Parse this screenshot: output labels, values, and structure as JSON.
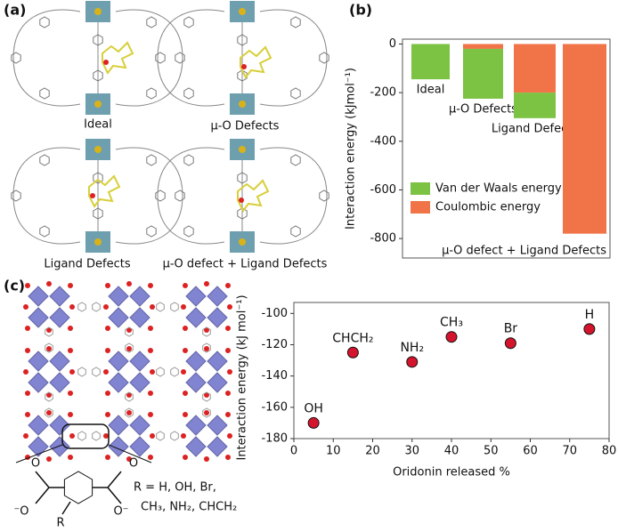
{
  "panel_labels": [
    "(a)",
    "(b)",
    "(c)"
  ],
  "panel_a": {
    "captions": [
      "Ideal",
      "μ-O Defects",
      "Ligand Defects",
      "μ-O defect + Ligand Defects"
    ]
  },
  "panel_c": {
    "r_groups": [
      "R = H, OH, Br,",
      "CH₃, NH₂, CHCH₂"
    ],
    "r_label": "R",
    "atom_labels": [
      "O",
      "⁻O",
      "O",
      "O⁻"
    ]
  },
  "chart_data": [
    {
      "type": "bar",
      "ylabel": "Interaction energy (kJmol⁻¹)",
      "categories": [
        "Ideal",
        "μ-O Defects",
        "Ligand Defects",
        "μ-O defect + Ligand Defects"
      ],
      "series": [
        {
          "name": "Van der Waals energy",
          "color": "#7cc243",
          "values": [
            -145,
            -205,
            -105,
            0
          ]
        },
        {
          "name": "Coulombic energy",
          "color": "#f07448",
          "values": [
            0,
            -20,
            -200,
            -780
          ]
        }
      ],
      "stacked": true,
      "ylim": [
        -880,
        20
      ],
      "yticks": [
        0,
        -200,
        -400,
        -600,
        -800
      ],
      "legend": "lower left"
    },
    {
      "type": "scatter",
      "xlabel": "Oridonin released %",
      "ylabel": "Interaction energy (kJ mol⁻¹)",
      "series": [
        {
          "name": null,
          "color": "#d4142d",
          "x": [
            5,
            15,
            30,
            40,
            55,
            75
          ],
          "values": [
            -170,
            -125,
            -131,
            -115,
            -119,
            -110
          ],
          "labels": [
            "OH",
            "CHCH₂",
            "NH₂",
            "CH₃",
            "Br",
            "H"
          ]
        }
      ],
      "xlim": [
        0,
        80
      ],
      "ylim": [
        -180,
        -93
      ],
      "xticks": [
        0,
        10,
        20,
        30,
        40,
        50,
        60,
        70,
        80
      ],
      "yticks": [
        -100,
        -120,
        -140,
        -160,
        -180
      ]
    }
  ]
}
